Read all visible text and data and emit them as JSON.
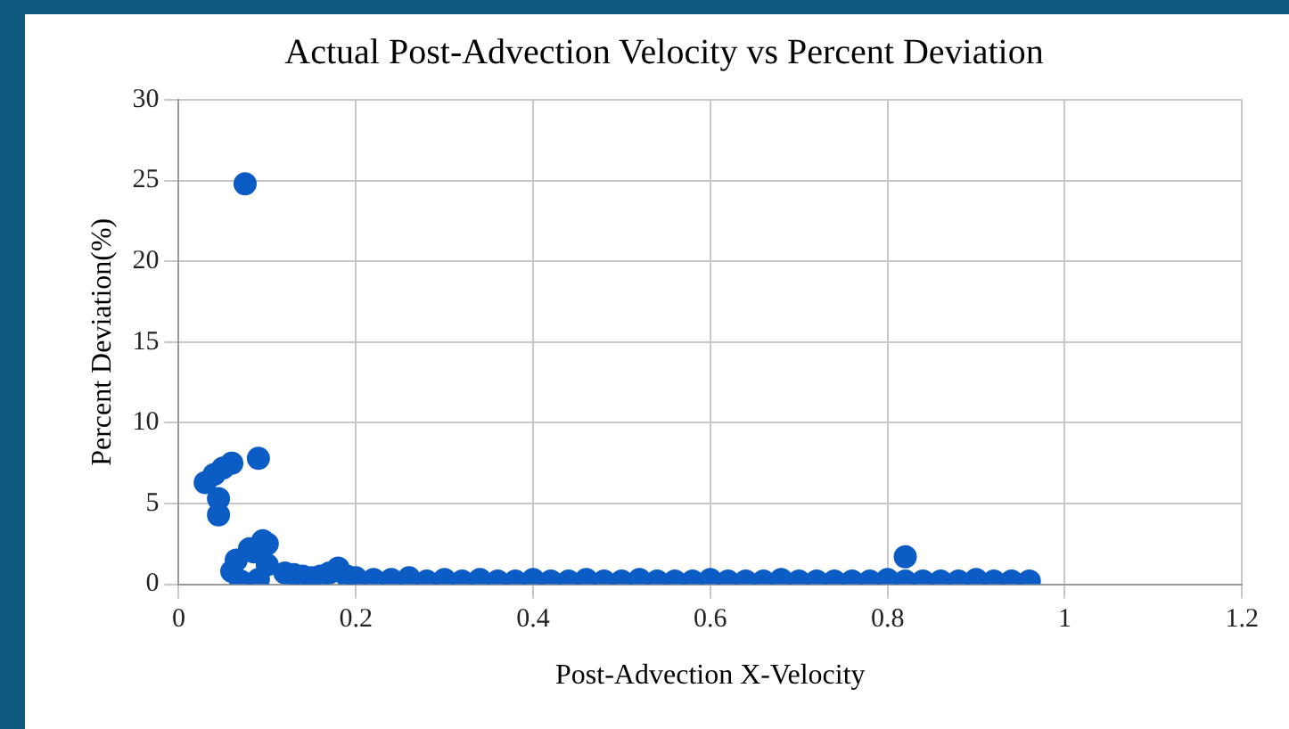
{
  "chart_data": {
    "type": "scatter",
    "title": "Actual Post-Advection Velocity vs Percent Deviation",
    "xlabel": "Post-Advection X-Velocity",
    "ylabel": "Percent Deviation(%)",
    "x": [
      0.075,
      0.03,
      0.04,
      0.05,
      0.06,
      0.045,
      0.045,
      0.09,
      0.06,
      0.065,
      0.08,
      0.085,
      0.095,
      0.1,
      0.1,
      0.07,
      0.09,
      0.12,
      0.13,
      0.14,
      0.15,
      0.16,
      0.17,
      0.18,
      0.19,
      0.2,
      0.22,
      0.24,
      0.26,
      0.28,
      0.3,
      0.32,
      0.34,
      0.36,
      0.38,
      0.4,
      0.42,
      0.44,
      0.46,
      0.48,
      0.5,
      0.52,
      0.54,
      0.56,
      0.58,
      0.6,
      0.62,
      0.64,
      0.66,
      0.68,
      0.7,
      0.72,
      0.74,
      0.76,
      0.78,
      0.8,
      0.82,
      0.84,
      0.86,
      0.88,
      0.9,
      0.92,
      0.94,
      0.96,
      0.82
    ],
    "values": [
      24.8,
      6.3,
      6.8,
      7.2,
      7.5,
      5.3,
      4.3,
      7.8,
      0.8,
      1.5,
      2.2,
      2.0,
      2.7,
      2.5,
      1.2,
      0.2,
      0.3,
      0.7,
      0.6,
      0.5,
      0.4,
      0.5,
      0.7,
      1.0,
      0.5,
      0.4,
      0.3,
      0.3,
      0.4,
      0.2,
      0.3,
      0.2,
      0.3,
      0.2,
      0.2,
      0.3,
      0.2,
      0.2,
      0.3,
      0.2,
      0.2,
      0.3,
      0.2,
      0.2,
      0.2,
      0.3,
      0.2,
      0.2,
      0.2,
      0.3,
      0.2,
      0.2,
      0.2,
      0.2,
      0.2,
      0.3,
      0.2,
      0.2,
      0.2,
      0.2,
      0.3,
      0.2,
      0.2,
      0.2,
      1.7
    ],
    "color": "#0b5cc4",
    "marker": "circle",
    "grid": true,
    "legend": false,
    "xlim": [
      0,
      1.2
    ],
    "xticks": [
      0,
      0.2,
      0.4,
      0.6,
      0.8,
      1,
      1.2
    ],
    "ylim": [
      0,
      30
    ],
    "yticks": [
      0,
      5,
      10,
      15,
      20,
      25,
      30
    ]
  }
}
